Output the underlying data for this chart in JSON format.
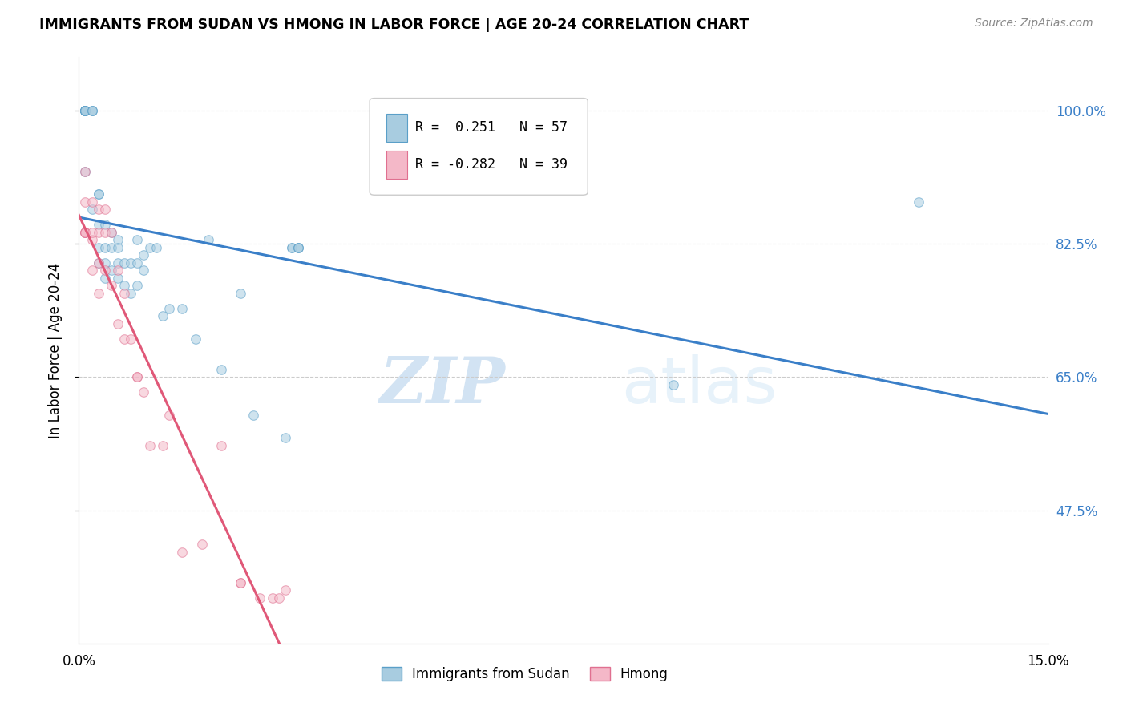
{
  "title": "IMMIGRANTS FROM SUDAN VS HMONG IN LABOR FORCE | AGE 20-24 CORRELATION CHART",
  "source": "Source: ZipAtlas.com",
  "ylabel": "In Labor Force | Age 20-24",
  "xlim": [
    0.0,
    0.15
  ],
  "ylim": [
    0.3,
    1.07
  ],
  "ytick_positions": [
    0.475,
    0.65,
    0.825,
    1.0
  ],
  "ytick_labels": [
    "47.5%",
    "65.0%",
    "82.5%",
    "100.0%"
  ],
  "grid_color": "#cccccc",
  "background_color": "#ffffff",
  "sudan_color": "#a8cce0",
  "hmong_color": "#f4b8c8",
  "sudan_edge_color": "#5a9fc8",
  "hmong_edge_color": "#e07090",
  "regression_sudan_color": "#3a7fc8",
  "regression_hmong_color": "#e05878",
  "regression_hmong_dashed_color": "#c8c8c8",
  "R_sudan": 0.251,
  "N_sudan": 57,
  "R_hmong": -0.282,
  "N_hmong": 39,
  "sudan_x": [
    0.001,
    0.001,
    0.001,
    0.001,
    0.001,
    0.001,
    0.001,
    0.001,
    0.001,
    0.001,
    0.002,
    0.002,
    0.002,
    0.002,
    0.003,
    0.003,
    0.003,
    0.003,
    0.003,
    0.004,
    0.004,
    0.004,
    0.004,
    0.005,
    0.005,
    0.005,
    0.006,
    0.006,
    0.006,
    0.006,
    0.007,
    0.007,
    0.008,
    0.008,
    0.009,
    0.009,
    0.009,
    0.01,
    0.01,
    0.011,
    0.012,
    0.013,
    0.014,
    0.016,
    0.018,
    0.02,
    0.022,
    0.025,
    0.027,
    0.032,
    0.033,
    0.033,
    0.034,
    0.034,
    0.034,
    0.092,
    0.13
  ],
  "sudan_y": [
    1.0,
    1.0,
    1.0,
    1.0,
    1.0,
    1.0,
    1.0,
    1.0,
    1.0,
    0.92,
    1.0,
    1.0,
    1.0,
    0.87,
    0.89,
    0.89,
    0.85,
    0.82,
    0.8,
    0.85,
    0.82,
    0.8,
    0.78,
    0.84,
    0.82,
    0.79,
    0.83,
    0.82,
    0.8,
    0.78,
    0.8,
    0.77,
    0.8,
    0.76,
    0.83,
    0.8,
    0.77,
    0.81,
    0.79,
    0.82,
    0.82,
    0.73,
    0.74,
    0.74,
    0.7,
    0.83,
    0.66,
    0.76,
    0.6,
    0.57,
    0.82,
    0.82,
    0.82,
    0.82,
    0.82,
    0.64,
    0.88
  ],
  "hmong_x": [
    0.001,
    0.001,
    0.001,
    0.001,
    0.001,
    0.001,
    0.002,
    0.002,
    0.002,
    0.002,
    0.003,
    0.003,
    0.003,
    0.003,
    0.004,
    0.004,
    0.004,
    0.005,
    0.005,
    0.006,
    0.006,
    0.007,
    0.007,
    0.008,
    0.009,
    0.009,
    0.01,
    0.011,
    0.013,
    0.014,
    0.016,
    0.019,
    0.022,
    0.025,
    0.025,
    0.028,
    0.03,
    0.031,
    0.032
  ],
  "hmong_y": [
    0.84,
    0.84,
    0.84,
    0.88,
    0.92,
    0.84,
    0.79,
    0.83,
    0.84,
    0.88,
    0.76,
    0.8,
    0.84,
    0.87,
    0.79,
    0.84,
    0.87,
    0.77,
    0.84,
    0.72,
    0.79,
    0.7,
    0.76,
    0.7,
    0.65,
    0.65,
    0.63,
    0.56,
    0.56,
    0.6,
    0.42,
    0.43,
    0.56,
    0.38,
    0.38,
    0.36,
    0.36,
    0.36,
    0.37
  ],
  "watermark_zip": "ZIP",
  "watermark_atlas": "atlas",
  "marker_size": 70,
  "alpha": 0.55
}
